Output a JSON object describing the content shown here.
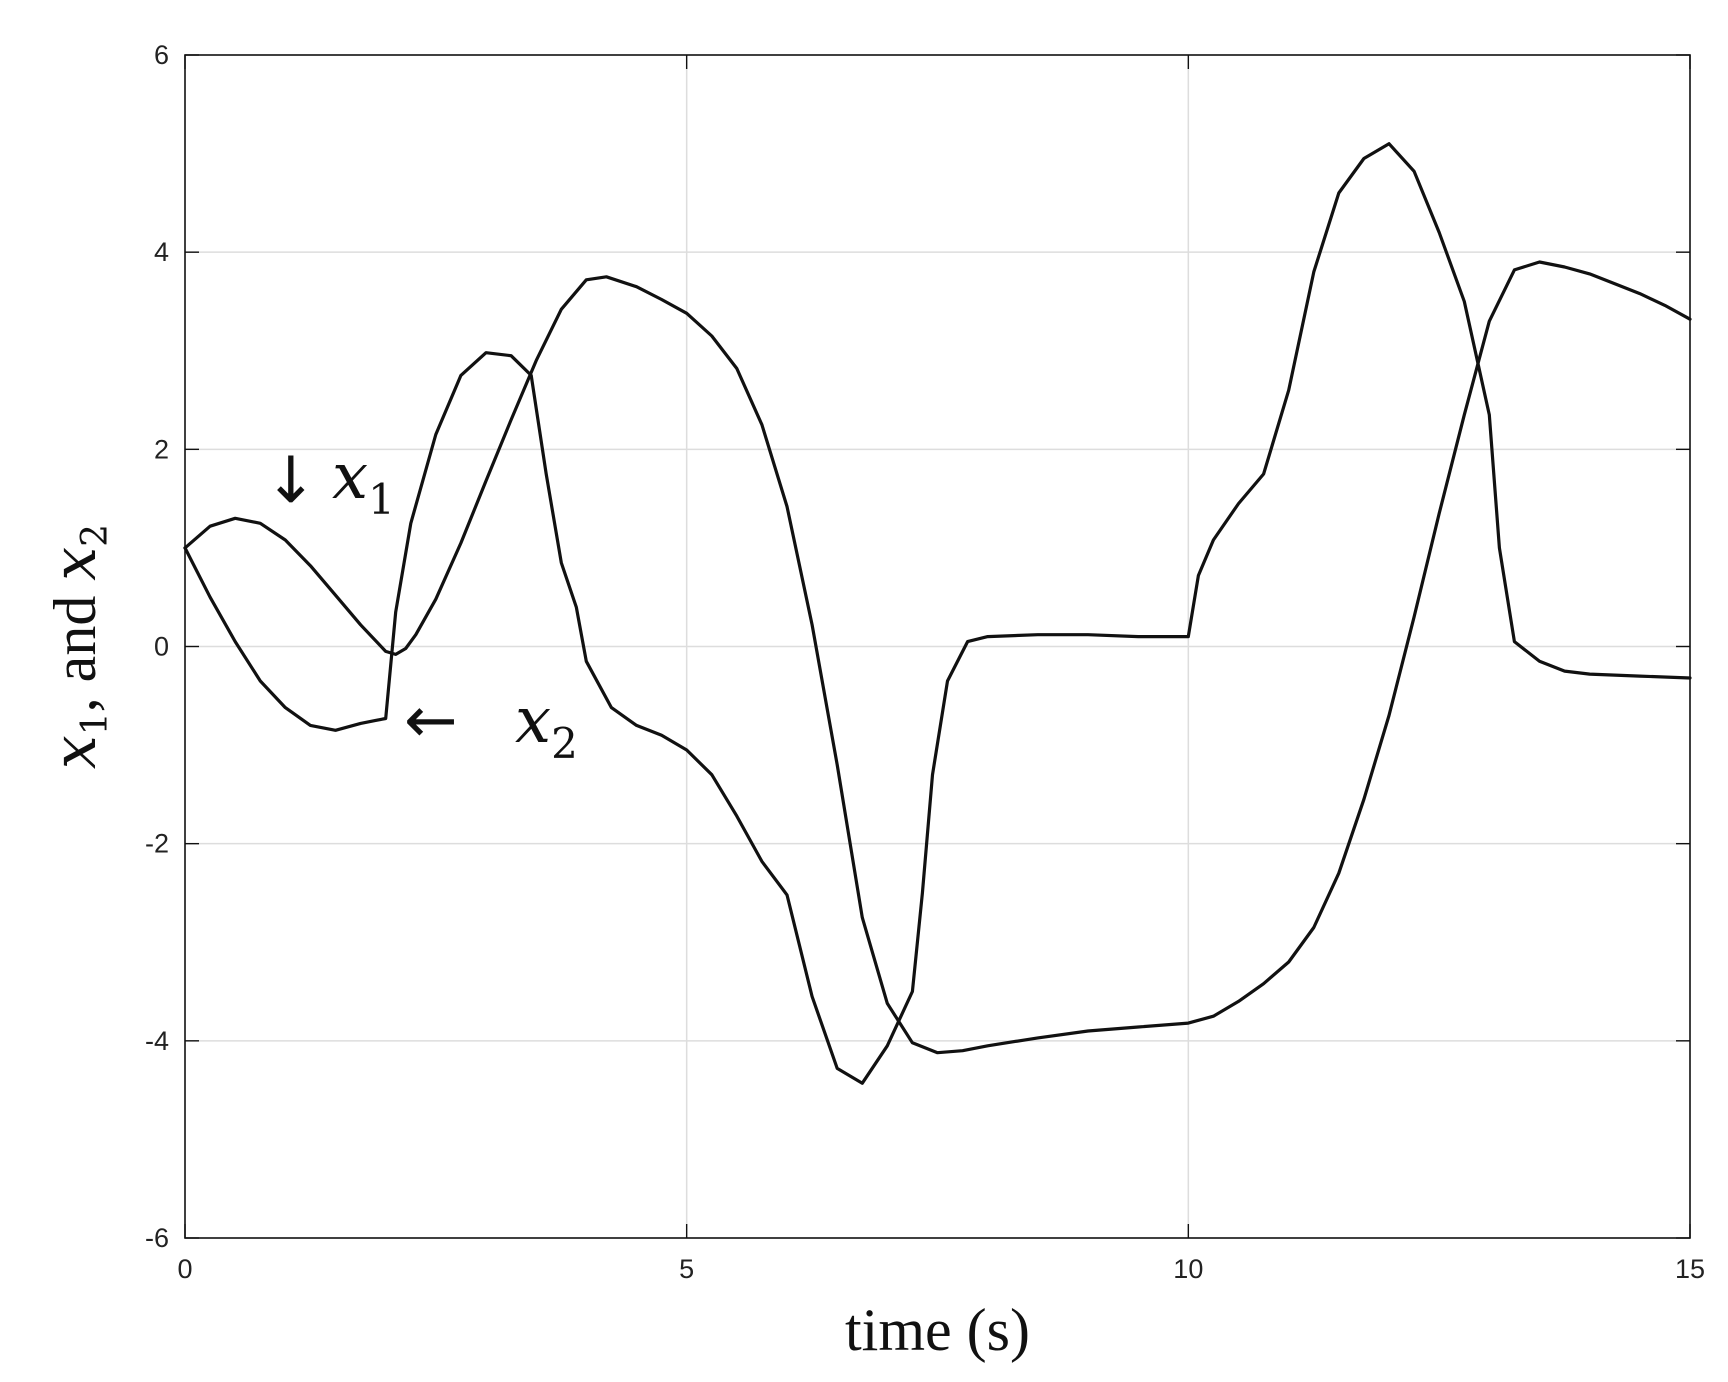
{
  "chart_data": {
    "type": "line",
    "title": "",
    "xlabel": "time (s)",
    "ylabel": {
      "parts": [
        {
          "text": "x",
          "sub": "1",
          "italic": true
        },
        {
          "text": ", and ",
          "italic": false
        },
        {
          "text": "x",
          "sub": "2",
          "italic": true
        }
      ]
    },
    "xlim": [
      0,
      15
    ],
    "ylim": [
      -6,
      6
    ],
    "xticks": [
      0,
      5,
      10,
      15
    ],
    "yticks": [
      -6,
      -4,
      -2,
      0,
      2,
      4,
      6
    ],
    "grid": true,
    "line_color": "#111111",
    "grid_color": "#dddddd",
    "series": [
      {
        "name": "x1",
        "x": [
          0,
          0.25,
          0.5,
          0.75,
          1.0,
          1.25,
          1.5,
          1.75,
          2.0,
          2.1,
          2.2,
          2.3,
          2.5,
          2.75,
          3.0,
          3.25,
          3.5,
          3.75,
          4.0,
          4.2,
          4.5,
          4.75,
          5.0,
          5.25,
          5.5,
          5.75,
          6.0,
          6.25,
          6.5,
          6.75,
          7.0,
          7.25,
          7.5,
          7.75,
          8.0,
          8.5,
          9.0,
          9.5,
          10.0,
          10.25,
          10.5,
          10.75,
          11.0,
          11.25,
          11.5,
          11.75,
          12.0,
          12.25,
          12.5,
          12.75,
          13.0,
          13.25,
          13.5,
          13.75,
          14.0,
          14.25,
          14.5,
          14.75,
          15.0
        ],
        "y": [
          1.0,
          1.22,
          1.3,
          1.25,
          1.08,
          0.82,
          0.52,
          0.22,
          -0.05,
          -0.08,
          -0.02,
          0.12,
          0.48,
          1.05,
          1.68,
          2.3,
          2.9,
          3.42,
          3.72,
          3.75,
          3.65,
          3.52,
          3.38,
          3.15,
          2.82,
          2.25,
          1.42,
          0.22,
          -1.2,
          -2.75,
          -3.62,
          -4.02,
          -4.12,
          -4.1,
          -4.05,
          -3.97,
          -3.9,
          -3.86,
          -3.82,
          -3.75,
          -3.6,
          -3.42,
          -3.2,
          -2.85,
          -2.3,
          -1.55,
          -0.7,
          0.3,
          1.35,
          2.35,
          3.3,
          3.82,
          3.9,
          3.85,
          3.78,
          3.68,
          3.58,
          3.46,
          3.32
        ]
      },
      {
        "name": "x2",
        "x": [
          0,
          0.25,
          0.5,
          0.75,
          1.0,
          1.25,
          1.5,
          1.75,
          1.9,
          2.0,
          2.1,
          2.25,
          2.5,
          2.75,
          3.0,
          3.25,
          3.45,
          3.6,
          3.75,
          3.9,
          4.0,
          4.25,
          4.5,
          4.75,
          5.0,
          5.25,
          5.5,
          5.75,
          6.0,
          6.25,
          6.5,
          6.75,
          7.0,
          7.25,
          7.35,
          7.45,
          7.6,
          7.8,
          8.0,
          8.5,
          9.0,
          9.5,
          10.0,
          10.1,
          10.25,
          10.5,
          10.75,
          11.0,
          11.25,
          11.5,
          11.75,
          12.0,
          12.25,
          12.5,
          12.75,
          13.0,
          13.1,
          13.25,
          13.5,
          13.75,
          14.0,
          14.5,
          15.0
        ],
        "y": [
          1.0,
          0.5,
          0.05,
          -0.35,
          -0.62,
          -0.8,
          -0.85,
          -0.78,
          -0.75,
          -0.73,
          0.35,
          1.25,
          2.15,
          2.75,
          2.98,
          2.95,
          2.75,
          1.75,
          0.85,
          0.4,
          -0.15,
          -0.62,
          -0.8,
          -0.9,
          -1.05,
          -1.3,
          -1.72,
          -2.18,
          -2.52,
          -3.55,
          -4.28,
          -4.43,
          -4.05,
          -3.5,
          -2.5,
          -1.3,
          -0.35,
          0.05,
          0.1,
          0.12,
          0.12,
          0.1,
          0.1,
          0.72,
          1.08,
          1.45,
          1.75,
          2.6,
          3.8,
          4.6,
          4.95,
          5.1,
          4.82,
          4.2,
          3.5,
          2.35,
          1.0,
          0.05,
          -0.15,
          -0.25,
          -0.28,
          -0.3,
          -0.32
        ]
      }
    ],
    "annotations": [
      {
        "target": "x1",
        "arrow": "↓",
        "label": "x",
        "sub": "1"
      },
      {
        "target": "x2",
        "arrow": "←",
        "label": "x",
        "sub": "2"
      }
    ]
  }
}
